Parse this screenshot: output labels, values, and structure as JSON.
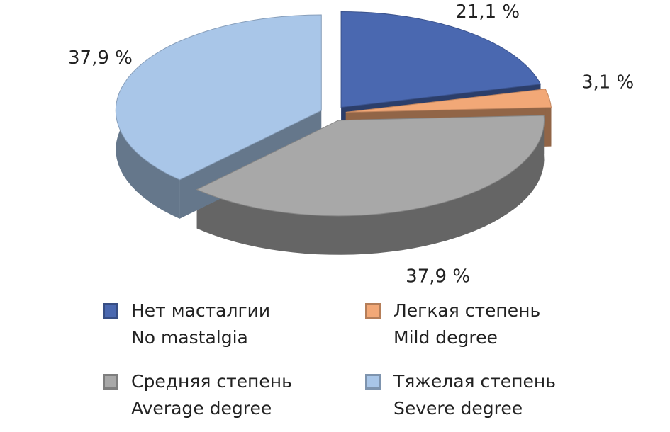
{
  "chart_data": {
    "type": "pie",
    "categories": [
      "Нет масталгии\nNo mastalgia",
      "Легкая степень\nMild degree",
      "Средняя степень\nAverage degree",
      "Тяжелая степень\nSevere degree"
    ],
    "values": [
      21.1,
      3.1,
      37.9,
      37.9
    ],
    "value_labels": [
      "21,1 %",
      "3,1 %",
      "37,9 %",
      "37,9 %"
    ],
    "colors": [
      "#4a68b0",
      "#f2a877",
      "#a8a8a8",
      "#a9c6e8"
    ]
  }
}
